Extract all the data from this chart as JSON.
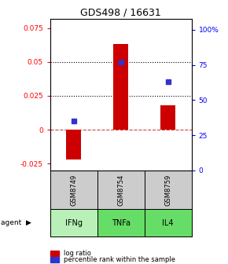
{
  "title": "GDS498 / 16631",
  "samples": [
    "GSM8749",
    "GSM8754",
    "GSM8759"
  ],
  "agents": [
    "IFNg",
    "TNFa",
    "IL4"
  ],
  "log_ratios": [
    -0.022,
    0.063,
    0.018
  ],
  "percentile_ranks": [
    35,
    77,
    63
  ],
  "bar_color": "#cc0000",
  "dot_color": "#3333cc",
  "left_ylim": [
    -0.03,
    0.082
  ],
  "right_ylim": [
    0,
    108
  ],
  "left_yticks": [
    -0.025,
    0,
    0.025,
    0.05,
    0.075
  ],
  "left_yticklabels": [
    "-0.025",
    "0",
    "0.025",
    "0.05",
    "0.075"
  ],
  "right_yticks": [
    0,
    25,
    50,
    75,
    100
  ],
  "right_yticklabels": [
    "0",
    "25",
    "50",
    "75",
    "100%"
  ],
  "dotted_lines": [
    0.025,
    0.05
  ],
  "zero_line": 0,
  "agent_bg_light": "#b8f0b8",
  "agent_bg_dark": "#66dd66",
  "sample_bg": "#cccccc",
  "legend_entries": [
    "log ratio",
    "percentile rank within the sample"
  ]
}
